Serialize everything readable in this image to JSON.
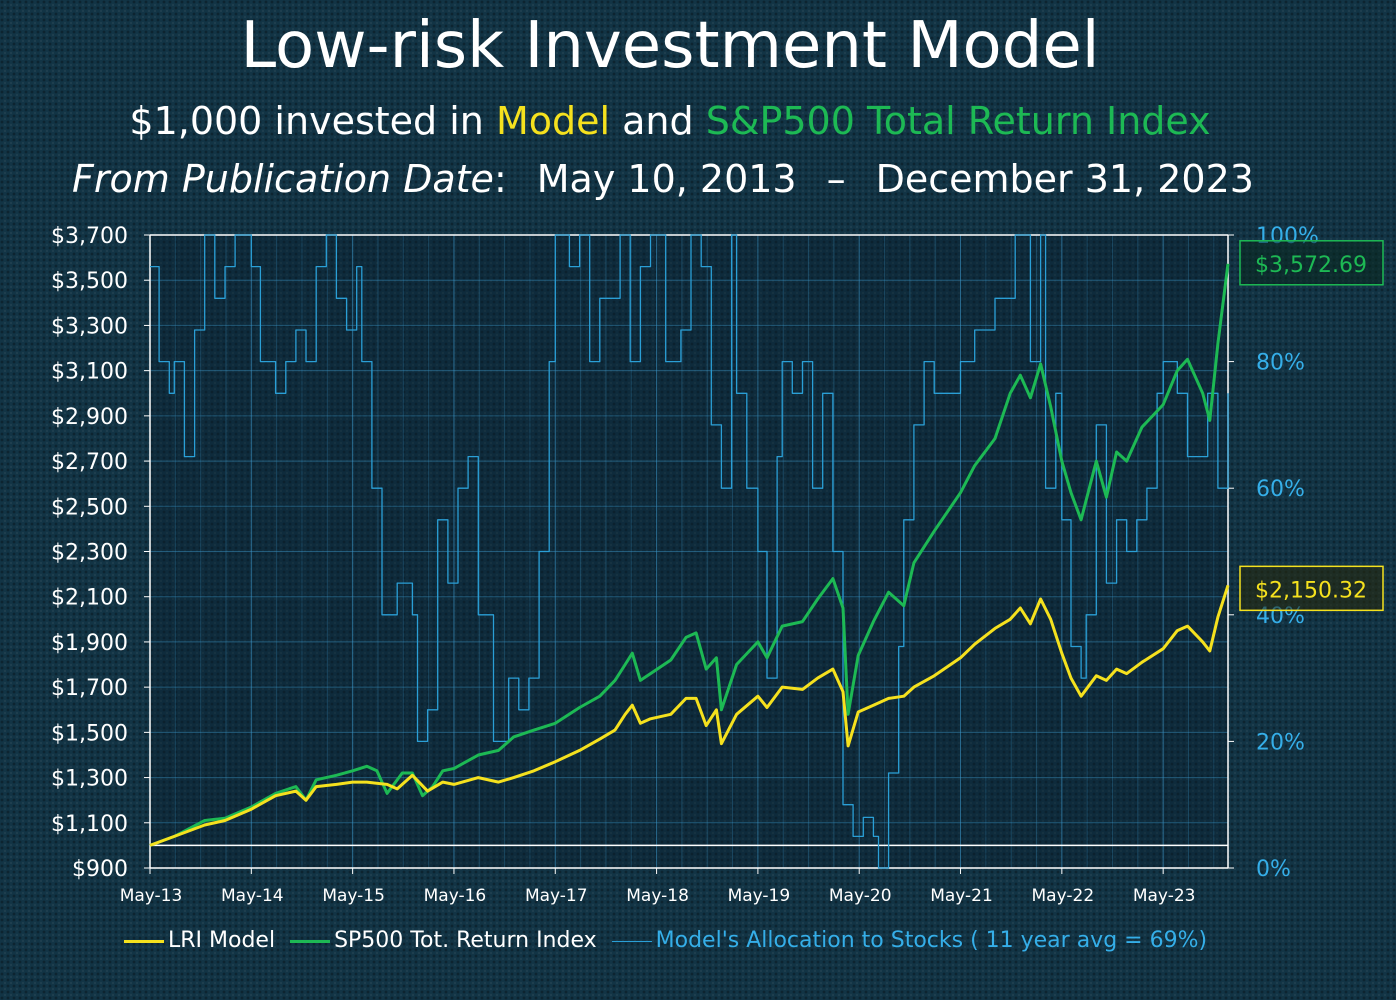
{
  "header": {
    "title": "Low-risk Investment Model",
    "subtitle_prefix": "$1,000 invested in ",
    "subtitle_model": "Model",
    "subtitle_and": " and ",
    "subtitle_index": "S&P500 Total Return Index",
    "range_label": "From Publication Date",
    "range_colon": ":",
    "range_start": "May 10, 2013",
    "range_dash": "–",
    "range_end": "December 31, 2023"
  },
  "colors": {
    "model": "#f5e11e",
    "index": "#1db954",
    "allocation": "#2a9fd6",
    "right_axis": "#35aee8",
    "text": "#ffffff",
    "background": "#123445"
  },
  "legend": {
    "model": "LRI Model",
    "index": "SP500 Tot. Return Index",
    "allocation": "Model's Allocation to Stocks  ( 11 year avg = 69%)"
  },
  "chart_data": {
    "type": "line",
    "title": "Low-risk Investment Model",
    "x_ticks": [
      "May-13",
      "May-14",
      "May-15",
      "May-16",
      "May-17",
      "May-18",
      "May-19",
      "May-20",
      "May-21",
      "May-22",
      "May-23"
    ],
    "x_range": [
      2013.36,
      2024.0
    ],
    "y_left": {
      "range": [
        900,
        3700
      ],
      "ticks": [
        "$900",
        "$1,100",
        "$1,300",
        "$1,500",
        "$1,700",
        "$1,900",
        "$2,100",
        "$2,300",
        "$2,500",
        "$2,700",
        "$2,900",
        "$3,100",
        "$3,300",
        "$3,500",
        "$3,700"
      ]
    },
    "y_right": {
      "range": [
        0,
        100
      ],
      "ticks": [
        "0%",
        "20%",
        "40%",
        "60%",
        "80%",
        "100%"
      ]
    },
    "grid": true,
    "legend_position": "bottom",
    "end_labels": {
      "index": "$3,572.69",
      "model": "$2,150.32"
    },
    "series": [
      {
        "name": "LRI Model",
        "axis": "left",
        "points": [
          [
            2013.36,
            1000
          ],
          [
            2013.6,
            1040
          ],
          [
            2013.9,
            1090
          ],
          [
            2014.1,
            1110
          ],
          [
            2014.36,
            1160
          ],
          [
            2014.6,
            1220
          ],
          [
            2014.8,
            1240
          ],
          [
            2014.9,
            1200
          ],
          [
            2015.0,
            1260
          ],
          [
            2015.2,
            1270
          ],
          [
            2015.36,
            1280
          ],
          [
            2015.5,
            1280
          ],
          [
            2015.7,
            1270
          ],
          [
            2015.8,
            1250
          ],
          [
            2015.95,
            1310
          ],
          [
            2016.1,
            1240
          ],
          [
            2016.25,
            1280
          ],
          [
            2016.36,
            1270
          ],
          [
            2016.6,
            1300
          ],
          [
            2016.8,
            1280
          ],
          [
            2016.95,
            1300
          ],
          [
            2017.15,
            1330
          ],
          [
            2017.36,
            1370
          ],
          [
            2017.6,
            1420
          ],
          [
            2017.8,
            1470
          ],
          [
            2017.95,
            1510
          ],
          [
            2018.05,
            1580
          ],
          [
            2018.12,
            1620
          ],
          [
            2018.2,
            1540
          ],
          [
            2018.3,
            1560
          ],
          [
            2018.5,
            1580
          ],
          [
            2018.65,
            1650
          ],
          [
            2018.75,
            1650
          ],
          [
            2018.85,
            1530
          ],
          [
            2018.95,
            1600
          ],
          [
            2019.0,
            1450
          ],
          [
            2019.15,
            1580
          ],
          [
            2019.36,
            1660
          ],
          [
            2019.45,
            1610
          ],
          [
            2019.6,
            1700
          ],
          [
            2019.8,
            1690
          ],
          [
            2019.95,
            1740
          ],
          [
            2020.1,
            1780
          ],
          [
            2020.2,
            1680
          ],
          [
            2020.25,
            1440
          ],
          [
            2020.35,
            1590
          ],
          [
            2020.5,
            1620
          ],
          [
            2020.65,
            1650
          ],
          [
            2020.8,
            1660
          ],
          [
            2020.9,
            1700
          ],
          [
            2021.1,
            1750
          ],
          [
            2021.36,
            1830
          ],
          [
            2021.5,
            1890
          ],
          [
            2021.7,
            1960
          ],
          [
            2021.85,
            2000
          ],
          [
            2021.95,
            2050
          ],
          [
            2022.05,
            1980
          ],
          [
            2022.15,
            2090
          ],
          [
            2022.25,
            2000
          ],
          [
            2022.36,
            1850
          ],
          [
            2022.45,
            1740
          ],
          [
            2022.55,
            1660
          ],
          [
            2022.7,
            1750
          ],
          [
            2022.8,
            1730
          ],
          [
            2022.9,
            1780
          ],
          [
            2023.0,
            1760
          ],
          [
            2023.15,
            1810
          ],
          [
            2023.36,
            1870
          ],
          [
            2023.5,
            1950
          ],
          [
            2023.6,
            1970
          ],
          [
            2023.75,
            1900
          ],
          [
            2023.82,
            1860
          ],
          [
            2023.9,
            2010
          ],
          [
            2024.0,
            2150.32
          ]
        ]
      },
      {
        "name": "SP500 Tot. Return Index",
        "axis": "left",
        "points": [
          [
            2013.36,
            1000
          ],
          [
            2013.6,
            1040
          ],
          [
            2013.9,
            1110
          ],
          [
            2014.1,
            1120
          ],
          [
            2014.36,
            1170
          ],
          [
            2014.6,
            1230
          ],
          [
            2014.8,
            1260
          ],
          [
            2014.9,
            1200
          ],
          [
            2015.0,
            1290
          ],
          [
            2015.2,
            1310
          ],
          [
            2015.36,
            1330
          ],
          [
            2015.5,
            1350
          ],
          [
            2015.6,
            1330
          ],
          [
            2015.7,
            1230
          ],
          [
            2015.85,
            1320
          ],
          [
            2015.95,
            1320
          ],
          [
            2016.05,
            1220
          ],
          [
            2016.15,
            1260
          ],
          [
            2016.25,
            1330
          ],
          [
            2016.36,
            1340
          ],
          [
            2016.6,
            1400
          ],
          [
            2016.8,
            1420
          ],
          [
            2016.95,
            1480
          ],
          [
            2017.15,
            1510
          ],
          [
            2017.36,
            1540
          ],
          [
            2017.6,
            1610
          ],
          [
            2017.8,
            1660
          ],
          [
            2017.95,
            1730
          ],
          [
            2018.05,
            1800
          ],
          [
            2018.12,
            1850
          ],
          [
            2018.2,
            1730
          ],
          [
            2018.3,
            1760
          ],
          [
            2018.5,
            1820
          ],
          [
            2018.65,
            1920
          ],
          [
            2018.75,
            1940
          ],
          [
            2018.85,
            1780
          ],
          [
            2018.95,
            1830
          ],
          [
            2019.0,
            1600
          ],
          [
            2019.15,
            1800
          ],
          [
            2019.36,
            1900
          ],
          [
            2019.45,
            1830
          ],
          [
            2019.6,
            1970
          ],
          [
            2019.8,
            1990
          ],
          [
            2019.95,
            2090
          ],
          [
            2020.1,
            2180
          ],
          [
            2020.2,
            2050
          ],
          [
            2020.25,
            1580
          ],
          [
            2020.35,
            1840
          ],
          [
            2020.5,
            1990
          ],
          [
            2020.65,
            2120
          ],
          [
            2020.8,
            2060
          ],
          [
            2020.9,
            2250
          ],
          [
            2021.1,
            2390
          ],
          [
            2021.36,
            2560
          ],
          [
            2021.5,
            2680
          ],
          [
            2021.7,
            2800
          ],
          [
            2021.85,
            3000
          ],
          [
            2021.95,
            3080
          ],
          [
            2022.05,
            2980
          ],
          [
            2022.15,
            3130
          ],
          [
            2022.25,
            2940
          ],
          [
            2022.36,
            2700
          ],
          [
            2022.45,
            2560
          ],
          [
            2022.55,
            2440
          ],
          [
            2022.7,
            2700
          ],
          [
            2022.8,
            2540
          ],
          [
            2022.9,
            2740
          ],
          [
            2023.0,
            2700
          ],
          [
            2023.15,
            2850
          ],
          [
            2023.36,
            2950
          ],
          [
            2023.5,
            3100
          ],
          [
            2023.6,
            3150
          ],
          [
            2023.75,
            3000
          ],
          [
            2023.82,
            2880
          ],
          [
            2023.9,
            3220
          ],
          [
            2024.0,
            3572.69
          ]
        ]
      },
      {
        "name": "Model's Allocation to Stocks  ( 11 year avg = 69%)",
        "axis": "right",
        "points": [
          [
            2013.36,
            95
          ],
          [
            2013.45,
            80
          ],
          [
            2013.55,
            75
          ],
          [
            2013.6,
            80
          ],
          [
            2013.7,
            65
          ],
          [
            2013.8,
            85
          ],
          [
            2013.9,
            100
          ],
          [
            2014.0,
            90
          ],
          [
            2014.1,
            95
          ],
          [
            2014.2,
            100
          ],
          [
            2014.36,
            95
          ],
          [
            2014.45,
            80
          ],
          [
            2014.6,
            75
          ],
          [
            2014.7,
            80
          ],
          [
            2014.8,
            85
          ],
          [
            2014.9,
            80
          ],
          [
            2015.0,
            95
          ],
          [
            2015.1,
            100
          ],
          [
            2015.2,
            90
          ],
          [
            2015.3,
            85
          ],
          [
            2015.4,
            95
          ],
          [
            2015.45,
            80
          ],
          [
            2015.55,
            60
          ],
          [
            2015.65,
            40
          ],
          [
            2015.8,
            45
          ],
          [
            2015.95,
            40
          ],
          [
            2016.0,
            20
          ],
          [
            2016.1,
            25
          ],
          [
            2016.2,
            55
          ],
          [
            2016.3,
            45
          ],
          [
            2016.4,
            60
          ],
          [
            2016.5,
            65
          ],
          [
            2016.6,
            40
          ],
          [
            2016.75,
            20
          ],
          [
            2016.9,
            30
          ],
          [
            2017.0,
            25
          ],
          [
            2017.1,
            30
          ],
          [
            2017.2,
            50
          ],
          [
            2017.3,
            80
          ],
          [
            2017.36,
            100
          ],
          [
            2017.5,
            95
          ],
          [
            2017.6,
            100
          ],
          [
            2017.7,
            80
          ],
          [
            2017.8,
            90
          ],
          [
            2018.0,
            100
          ],
          [
            2018.1,
            80
          ],
          [
            2018.2,
            95
          ],
          [
            2018.3,
            100
          ],
          [
            2018.45,
            80
          ],
          [
            2018.6,
            85
          ],
          [
            2018.7,
            100
          ],
          [
            2018.8,
            95
          ],
          [
            2018.9,
            70
          ],
          [
            2019.0,
            60
          ],
          [
            2019.1,
            100
          ],
          [
            2019.15,
            75
          ],
          [
            2019.25,
            60
          ],
          [
            2019.36,
            50
          ],
          [
            2019.45,
            30
          ],
          [
            2019.55,
            65
          ],
          [
            2019.6,
            80
          ],
          [
            2019.7,
            75
          ],
          [
            2019.8,
            80
          ],
          [
            2019.9,
            60
          ],
          [
            2020.0,
            75
          ],
          [
            2020.1,
            50
          ],
          [
            2020.2,
            10
          ],
          [
            2020.3,
            5
          ],
          [
            2020.4,
            8
          ],
          [
            2020.5,
            5
          ],
          [
            2020.55,
            0
          ],
          [
            2020.65,
            15
          ],
          [
            2020.75,
            35
          ],
          [
            2020.8,
            55
          ],
          [
            2020.9,
            70
          ],
          [
            2021.0,
            80
          ],
          [
            2021.1,
            75
          ],
          [
            2021.36,
            80
          ],
          [
            2021.5,
            85
          ],
          [
            2021.7,
            90
          ],
          [
            2021.9,
            100
          ],
          [
            2022.05,
            80
          ],
          [
            2022.15,
            100
          ],
          [
            2022.2,
            60
          ],
          [
            2022.3,
            75
          ],
          [
            2022.36,
            55
          ],
          [
            2022.45,
            35
          ],
          [
            2022.55,
            30
          ],
          [
            2022.6,
            40
          ],
          [
            2022.7,
            70
          ],
          [
            2022.8,
            45
          ],
          [
            2022.9,
            55
          ],
          [
            2023.0,
            50
          ],
          [
            2023.1,
            55
          ],
          [
            2023.2,
            60
          ],
          [
            2023.3,
            75
          ],
          [
            2023.36,
            80
          ],
          [
            2023.5,
            75
          ],
          [
            2023.6,
            65
          ],
          [
            2023.7,
            65
          ],
          [
            2023.8,
            75
          ],
          [
            2023.9,
            60
          ],
          [
            2024.0,
            75
          ]
        ]
      }
    ]
  }
}
